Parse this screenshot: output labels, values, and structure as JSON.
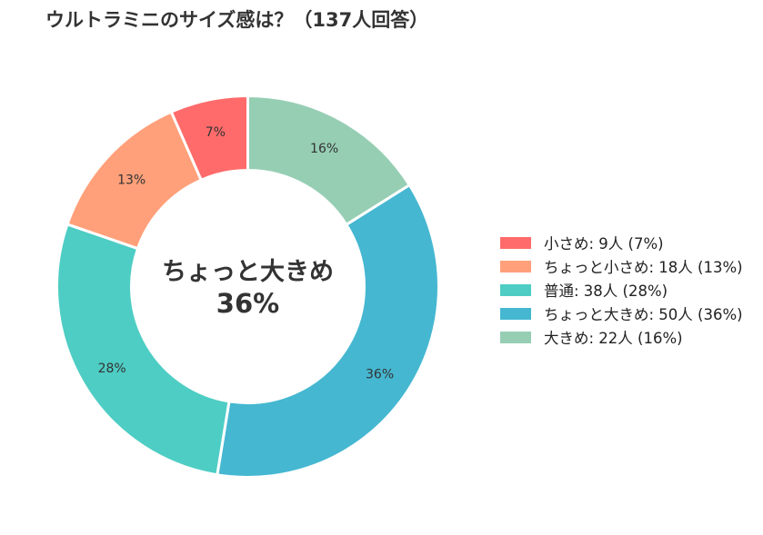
{
  "chart_data": {
    "type": "pie",
    "title": "ウルトラミニのサイズ感は？（137人回答）",
    "categories": [
      "小さめ",
      "ちょっと小さめ",
      "普通",
      "ちょっと大きめ",
      "大きめ"
    ],
    "values": [
      9,
      18,
      38,
      50,
      22
    ],
    "percent_labels": [
      "7%",
      "13%",
      "28%",
      "36%",
      "16%"
    ],
    "legend_labels": [
      "小さめ:  9人 (7%)",
      "ちょっと小さめ:  18人 (13%)",
      "普通:  38人 (28%)",
      "ちょっと大きめ:  50人 (36%)",
      "大きめ:  22人 (16%)"
    ],
    "colors": [
      "#ff6b6b",
      "#ffa07a",
      "#4ecdc4",
      "#45b7d1",
      "#96ceb4"
    ],
    "donut": true,
    "start_angle_deg": 90,
    "direction": "counterclockwise",
    "center_label": {
      "line1": "ちょっと大きめ",
      "line2": "36%"
    },
    "legend_position": "right"
  }
}
